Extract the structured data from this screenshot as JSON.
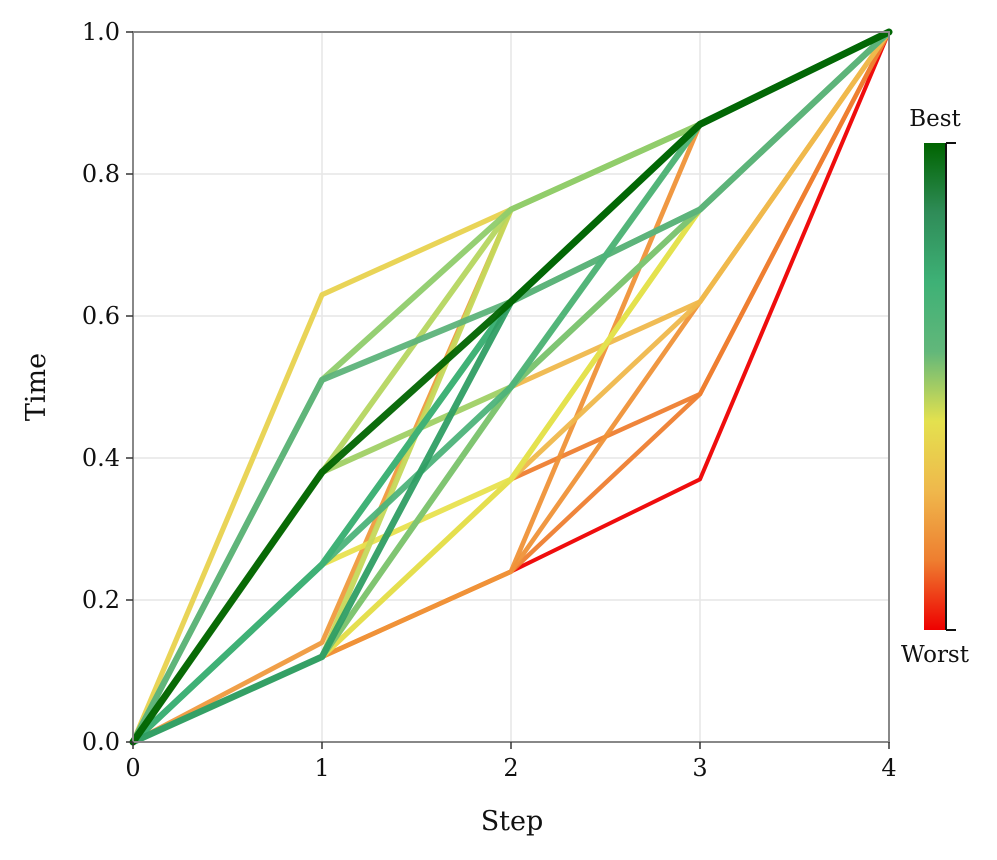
{
  "chart_data": {
    "type": "line",
    "title": "",
    "xlabel": "Step",
    "ylabel": "Time",
    "xlim": [
      0,
      4
    ],
    "ylim": [
      0,
      1
    ],
    "x_ticks": [
      "0",
      "1",
      "2",
      "3",
      "4"
    ],
    "y_ticks": [
      "0.0",
      "0.2",
      "0.4",
      "0.6",
      "0.8",
      "1.0"
    ],
    "grid": true,
    "legend": "none",
    "colorbar": {
      "top_label": "Best",
      "bottom_label": "Worst",
      "colors": [
        "#ee0000",
        "#ee7e30",
        "#efb84c",
        "#e4e14e",
        "#62b77a",
        "#3eb176",
        "#2f8c58",
        "#006400"
      ]
    },
    "x": [
      0,
      1,
      2,
      3,
      4
    ],
    "series": [
      {
        "values": [
          0,
          0.12,
          0.24,
          0.37,
          1.0
        ],
        "color": "#ee0000",
        "quality": 0.0
      },
      {
        "values": [
          0,
          0.12,
          0.24,
          0.49,
          1.0
        ],
        "color": "#ee7e30",
        "quality": 0.15
      },
      {
        "values": [
          0,
          0.12,
          0.37,
          0.49,
          1.0
        ],
        "color": "#ee7e30",
        "quality": 0.16
      },
      {
        "values": [
          0,
          0.12,
          0.24,
          0.62,
          1.0
        ],
        "color": "#ef9238",
        "quality": 0.22
      },
      {
        "values": [
          0,
          0.12,
          0.24,
          0.87,
          1.0
        ],
        "color": "#ef9238",
        "quality": 0.24
      },
      {
        "values": [
          0,
          0.14,
          0.75,
          0.87,
          1.0
        ],
        "color": "#ef9a3e",
        "quality": 0.26
      },
      {
        "values": [
          0,
          0.12,
          0.37,
          0.62,
          1.0
        ],
        "color": "#efb84c",
        "quality": 0.32
      },
      {
        "values": [
          0,
          0.12,
          0.5,
          0.62,
          1.0
        ],
        "color": "#efb84c",
        "quality": 0.33
      },
      {
        "values": [
          0,
          0.63,
          0.75,
          0.87,
          1.0
        ],
        "color": "#e8d24e",
        "quality": 0.4
      },
      {
        "values": [
          0,
          0.25,
          0.37,
          0.75,
          1.0
        ],
        "color": "#e8e14e",
        "quality": 0.45
      },
      {
        "values": [
          0,
          0.12,
          0.37,
          0.75,
          1.0
        ],
        "color": "#e4e14e",
        "quality": 0.47
      },
      {
        "values": [
          0,
          0.12,
          0.75,
          0.87,
          1.0
        ],
        "color": "#c5d85a",
        "quality": 0.52
      },
      {
        "values": [
          0,
          0.12,
          0.5,
          0.87,
          1.0
        ],
        "color": "#c5d85a",
        "quality": 0.53
      },
      {
        "values": [
          0,
          0.38,
          0.75,
          0.87,
          1.0
        ],
        "color": "#b5d660",
        "quality": 0.56
      },
      {
        "values": [
          0,
          0.38,
          0.5,
          0.75,
          1.0
        ],
        "color": "#a0d065",
        "quality": 0.6
      },
      {
        "values": [
          0,
          0.51,
          0.75,
          0.87,
          1.0
        ],
        "color": "#8fcc6c",
        "quality": 0.63
      },
      {
        "values": [
          0,
          0.12,
          0.5,
          0.75,
          1.0
        ],
        "color": "#7cc474",
        "quality": 0.66
      },
      {
        "values": [
          0,
          0.25,
          0.62,
          0.75,
          1.0
        ],
        "color": "#62b77a",
        "quality": 0.7
      },
      {
        "values": [
          0,
          0.51,
          0.62,
          0.75,
          1.0
        ],
        "color": "#5db37a",
        "quality": 0.72
      },
      {
        "values": [
          0,
          0.25,
          0.5,
          0.87,
          1.0
        ],
        "color": "#4db37a",
        "quality": 0.76
      },
      {
        "values": [
          0,
          0.25,
          0.62,
          0.87,
          1.0
        ],
        "color": "#3eb176",
        "quality": 0.8
      },
      {
        "values": [
          0,
          0.12,
          0.62,
          0.87,
          1.0
        ],
        "color": "#2f9e64",
        "quality": 0.86
      },
      {
        "values": [
          0,
          0.38,
          0.62,
          0.87,
          1.0
        ],
        "color": "#006400",
        "quality": 1.0
      }
    ]
  }
}
